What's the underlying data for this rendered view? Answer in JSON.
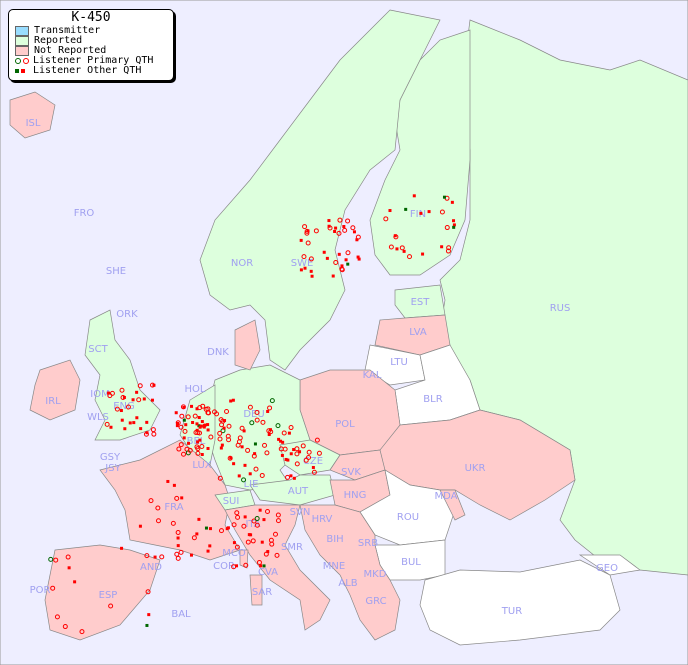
{
  "legend": {
    "title": "K-450",
    "items": [
      {
        "label": "Transmitter",
        "color": "#99ddff"
      },
      {
        "label": "Reported",
        "color": "#ddffdd"
      },
      {
        "label": "Not Reported",
        "color": "#ffcccc"
      },
      {
        "label": "Listener Primary QTH",
        "colors": [
          "#006600",
          "#ff0000"
        ]
      },
      {
        "label": "Listener Other QTH",
        "colors": [
          "#006600",
          "#ff0000"
        ]
      }
    ]
  },
  "colors": {
    "sea": "#eeeeff",
    "reported": "#ddffdd",
    "not_reported": "#ffcccc",
    "no_data": "#ffffff",
    "label": "#a0a0f0"
  },
  "countries": {
    "reported": [
      "NOR",
      "SWE",
      "FIN",
      "EST",
      "RUS",
      "DEU",
      "HOL",
      "BEL",
      "LUX",
      "CZE",
      "ENG",
      "SCT",
      "WLS",
      "IOM",
      "GSY",
      "JSY",
      "SUI",
      "LIE",
      "AUT",
      "SVN",
      "ORK",
      "SHE",
      "FRO"
    ],
    "not_reported": [
      "ISL",
      "IRL",
      "DNK",
      "LVA",
      "POL",
      "UKR",
      "SVK",
      "HNG",
      "FRA",
      "ITA",
      "ESP",
      "POR",
      "HRV",
      "BIH",
      "SRB",
      "MNE",
      "ALB",
      "MKD",
      "GRC",
      "SAR",
      "COR",
      "BAL",
      "AND",
      "MCO",
      "SMR",
      "CVA",
      "KAL",
      "MDA"
    ],
    "no_data": [
      "LTU",
      "BLR",
      "ROU",
      "BUL",
      "TUR",
      "GEO"
    ]
  },
  "labels": [
    "ISL",
    "FRO",
    "SHE",
    "ORK",
    "NOR",
    "SWE",
    "FIN",
    "EST",
    "RUS",
    "LVA",
    "LTU",
    "DNK",
    "KAL",
    "BLR",
    "HOL",
    "DEU",
    "POL",
    "IRL",
    "WLS",
    "IOM",
    "SCT",
    "ENG",
    "GSY",
    "JSY",
    "BEL",
    "LUX",
    "CZE",
    "SVK",
    "UKR",
    "FRA",
    "SUI",
    "LIE",
    "AUT",
    "HNG",
    "MDA",
    "SVN",
    "HRV",
    "ROU",
    "ITA",
    "BIH",
    "SRB",
    "MCO",
    "SMR",
    "COR",
    "AND",
    "MNE",
    "BUL",
    "GEO",
    "POR",
    "ESP",
    "CVA",
    "ALB",
    "MKD",
    "SAR",
    "GRC",
    "TUR",
    "BAL"
  ]
}
